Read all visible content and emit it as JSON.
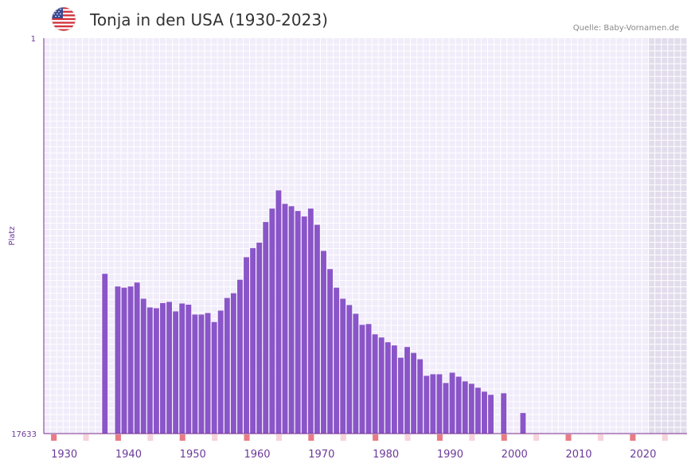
{
  "header": {
    "title": "Tonja in den USA (1930-2023)",
    "source": "Quelle: Baby-Vornamen.de"
  },
  "colors": {
    "bar": "#8a55c8",
    "axis": "#7a2e8a",
    "tick_text": "#6b3a9a",
    "grid_bg": "#f1ecfa",
    "grid_line": "#ffffff",
    "future_bg": "#e2dcec",
    "decade_marker": "#e87c86",
    "half_marker": "#f7d3dc"
  },
  "chart_data": {
    "type": "bar",
    "title": "Tonja in den USA (1930-2023)",
    "ylabel": "Platz",
    "xlabel": "",
    "y_axis_labels": {
      "top": "1",
      "bottom": "17633"
    },
    "ylim": [
      0,
      100
    ],
    "value_note": "relative bar height in percent of axis height (rank scale inverted)",
    "x_ticks": [
      "1930",
      "1940",
      "1950",
      "1960",
      "1970",
      "1980",
      "1990",
      "2000",
      "2010",
      "2020"
    ],
    "years": [
      1938,
      1940,
      1941,
      1942,
      1943,
      1944,
      1945,
      1946,
      1947,
      1948,
      1949,
      1950,
      1951,
      1952,
      1953,
      1954,
      1955,
      1956,
      1957,
      1958,
      1959,
      1960,
      1961,
      1962,
      1963,
      1964,
      1965,
      1966,
      1967,
      1968,
      1969,
      1970,
      1971,
      1972,
      1973,
      1974,
      1975,
      1976,
      1977,
      1978,
      1979,
      1980,
      1981,
      1982,
      1983,
      1984,
      1985,
      1986,
      1987,
      1988,
      1989,
      1990,
      1991,
      1992,
      1993,
      1994,
      1995,
      1996,
      1997,
      1998,
      2000,
      2003
    ],
    "values": [
      40.4,
      37.2,
      36.9,
      37.2,
      38.2,
      34.1,
      31.9,
      31.7,
      33.0,
      33.3,
      30.9,
      32.9,
      32.6,
      30.1,
      30.1,
      30.5,
      28.2,
      31.1,
      34.3,
      35.5,
      38.9,
      44.6,
      46.9,
      48.3,
      53.5,
      56.9,
      61.5,
      58.1,
      57.5,
      56.3,
      54.9,
      56.9,
      52.8,
      46.2,
      41.6,
      36.9,
      34.1,
      32.5,
      30.3,
      27.5,
      27.7,
      25.1,
      24.3,
      23.1,
      22.3,
      19.2,
      21.9,
      20.4,
      18.8,
      14.6,
      15.0,
      15.0,
      12.8,
      15.4,
      14.4,
      13.2,
      12.6,
      11.6,
      10.6,
      9.8,
      10.2,
      5.2
    ],
    "year_range": [
      1929,
      2029
    ],
    "future_start": 2023
  }
}
